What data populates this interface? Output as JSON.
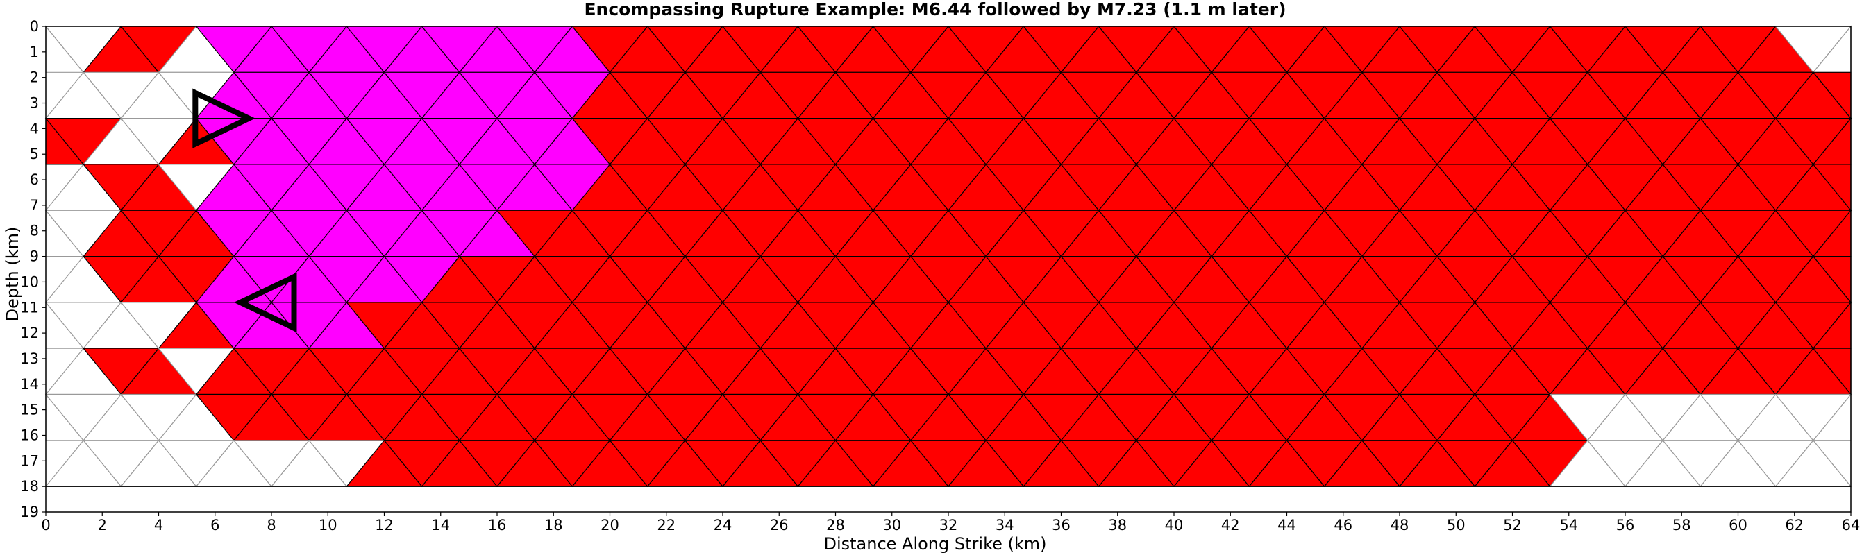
{
  "chart_data": {
    "type": "heatmap",
    "title": "Encompassing Rupture Example: M6.44 followed by M7.23 (1.1 m later)",
    "xlabel": "Distance Along Strike (km)",
    "ylabel": "Depth (km)",
    "xlim": [
      0,
      64
    ],
    "ylim": [
      0,
      19
    ],
    "y_inverted": true,
    "x_ticks": [
      0,
      2,
      4,
      6,
      8,
      10,
      12,
      14,
      16,
      18,
      20,
      22,
      24,
      26,
      28,
      30,
      32,
      34,
      36,
      38,
      40,
      42,
      44,
      46,
      48,
      50,
      52,
      54,
      56,
      58,
      60,
      62,
      64
    ],
    "y_ticks": [
      0,
      1,
      2,
      3,
      4,
      5,
      6,
      7,
      8,
      9,
      10,
      11,
      12,
      13,
      14,
      15,
      16,
      17,
      18,
      19
    ],
    "grid_rows": 10,
    "grid_cols": 48,
    "grid_depth_range": [
      0,
      18
    ],
    "colors": {
      "first_rupture": "#ff00ff",
      "second_rupture": "#ff0000",
      "unruptured": "#ffffff",
      "edge_ruptured": "#000000",
      "edge_unruptured": "#999999"
    },
    "hypocenters": [
      {
        "x": 5.3,
        "depth": 3.6,
        "direction": "right",
        "rupture": "first"
      },
      {
        "x": 8.8,
        "depth": 10.8,
        "direction": "left",
        "rupture": "second"
      }
    ]
  }
}
